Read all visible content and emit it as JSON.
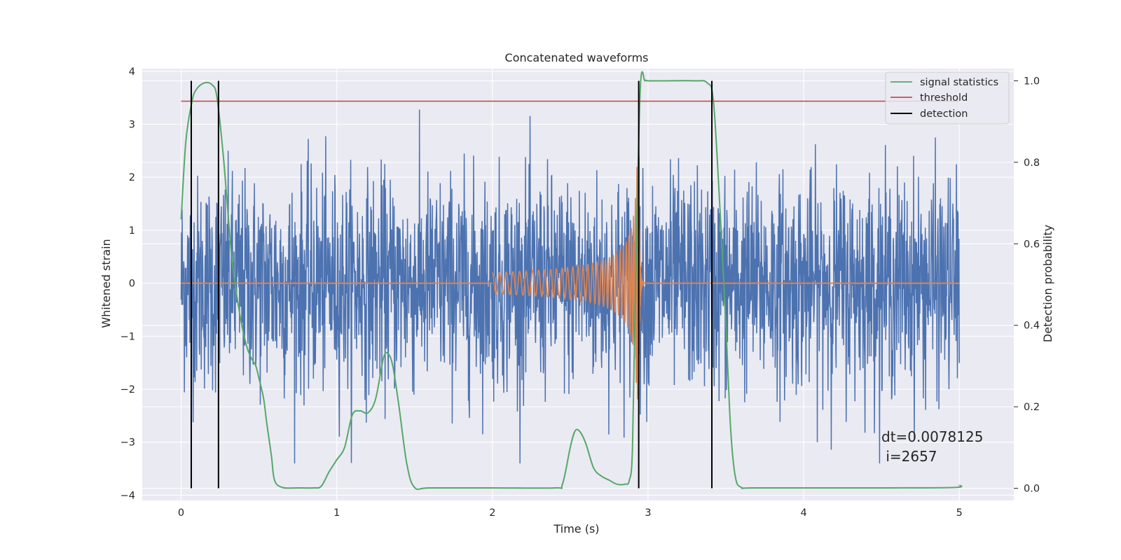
{
  "chart_data": {
    "type": "line",
    "title": "Concatenated waveforms",
    "xlabel": "Time (s)",
    "ylabel": "Whitened strain",
    "y2label": "Detection probability",
    "xlim": [
      -0.25,
      5.35
    ],
    "ylim": [
      -4.1,
      4.05
    ],
    "y2lim": [
      -0.03,
      1.03
    ],
    "x_ticks": [
      0,
      1,
      2,
      3,
      4,
      5
    ],
    "y_ticks": [
      -4,
      -3,
      -2,
      -1,
      0,
      1,
      2,
      3,
      4
    ],
    "y2_ticks": [
      0.0,
      0.2,
      0.4,
      0.6,
      0.8,
      1.0
    ],
    "x_tick_labels": [
      "0",
      "1",
      "2",
      "3",
      "4",
      "5"
    ],
    "y_tick_labels": [
      "−4",
      "−3",
      "−2",
      "−1",
      "0",
      "1",
      "2",
      "3",
      "4"
    ],
    "y2_tick_labels": [
      "0.0",
      "0.2",
      "0.4",
      "0.6",
      "0.8",
      "1.0"
    ],
    "grid": true,
    "legend_position": "top-right",
    "colors": {
      "strain": "#4c72b0",
      "template": "#dd8452",
      "signal": "#55a868",
      "threshold": "#c44e52",
      "detection": "#000000",
      "background": "#eaeaf2",
      "grid": "#ffffff"
    },
    "series": [
      {
        "name": "",
        "axis": "left",
        "description": "whitened strain noise",
        "x_range": [
          0,
          5
        ],
        "amplitude_typical": 1.0,
        "max_peak": 3.7,
        "min_peak": -3.4
      },
      {
        "name": "",
        "axis": "left",
        "description": "chirp waveform",
        "x_range": [
          2.0,
          3.0
        ],
        "start_amplitude": 0.2,
        "peak_x": 2.94,
        "peak_amplitude": 2.2
      },
      {
        "name": "signal statistics",
        "axis": "right",
        "x": [
          0.0,
          0.03,
          0.07,
          0.1,
          0.15,
          0.2,
          0.23,
          0.27,
          0.3,
          0.33,
          0.38,
          0.42,
          0.45,
          0.48,
          0.5,
          0.53,
          0.55,
          0.58,
          0.6,
          0.65,
          0.75,
          0.85,
          0.9,
          0.95,
          1.0,
          1.05,
          1.1,
          1.15,
          1.2,
          1.25,
          1.3,
          1.33,
          1.36,
          1.4,
          1.45,
          1.5,
          1.6,
          2.0,
          2.4,
          2.45,
          2.5,
          2.53,
          2.56,
          2.6,
          2.65,
          2.7,
          2.75,
          2.8,
          2.85,
          2.88,
          2.9,
          2.92,
          2.95,
          2.98,
          3.0,
          3.1,
          3.3,
          3.38,
          3.42,
          3.46,
          3.5,
          3.53,
          3.56,
          3.6,
          3.7,
          4.5,
          4.97,
          5.0
        ],
        "y": [
          0.66,
          0.85,
          0.95,
          0.98,
          0.995,
          0.99,
          0.96,
          0.82,
          0.68,
          0.55,
          0.42,
          0.35,
          0.32,
          0.3,
          0.27,
          0.22,
          0.16,
          0.08,
          0.02,
          0.002,
          0.001,
          0.001,
          0.005,
          0.04,
          0.07,
          0.1,
          0.18,
          0.19,
          0.185,
          0.22,
          0.32,
          0.33,
          0.3,
          0.2,
          0.06,
          0.002,
          0.001,
          0.001,
          0.001,
          0.01,
          0.1,
          0.14,
          0.14,
          0.11,
          0.05,
          0.03,
          0.02,
          0.01,
          0.01,
          0.02,
          0.1,
          0.5,
          0.98,
          1.0,
          1.0,
          1.0,
          1.0,
          0.995,
          0.95,
          0.7,
          0.4,
          0.15,
          0.03,
          0.002,
          0.001,
          0.001,
          0.002,
          0.008
        ]
      },
      {
        "name": "threshold",
        "axis": "right",
        "x": [
          0,
          5
        ],
        "y": [
          0.95,
          0.95
        ]
      },
      {
        "name": "detection",
        "axis": "right",
        "x_positions": [
          0.065,
          0.24,
          2.94,
          3.41
        ],
        "y_range": [
          0.0,
          1.0
        ]
      }
    ],
    "annotation": {
      "line1": "dt=0.0078125",
      "line2": " i=2657"
    }
  }
}
